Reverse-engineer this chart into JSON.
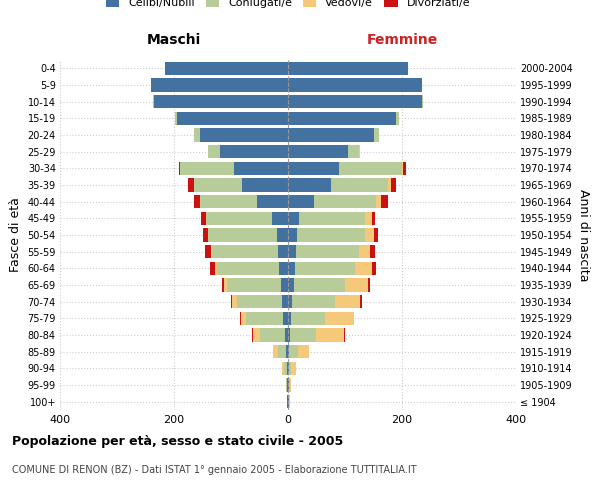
{
  "age_groups": [
    "100+",
    "95-99",
    "90-94",
    "85-89",
    "80-84",
    "75-79",
    "70-74",
    "65-69",
    "60-64",
    "55-59",
    "50-54",
    "45-49",
    "40-44",
    "35-39",
    "30-34",
    "25-29",
    "20-24",
    "15-19",
    "10-14",
    "5-9",
    "0-4"
  ],
  "birth_years": [
    "≤ 1904",
    "1905-1909",
    "1910-1914",
    "1915-1919",
    "1920-1924",
    "1925-1929",
    "1930-1934",
    "1935-1939",
    "1940-1944",
    "1945-1949",
    "1950-1954",
    "1955-1959",
    "1960-1964",
    "1965-1969",
    "1970-1974",
    "1975-1979",
    "1980-1984",
    "1985-1989",
    "1990-1994",
    "1995-1999",
    "2000-2004"
  ],
  "males": {
    "celibi": [
      1,
      1,
      2,
      3,
      5,
      8,
      10,
      12,
      15,
      18,
      20,
      28,
      55,
      80,
      95,
      120,
      155,
      195,
      235,
      240,
      215
    ],
    "coniugati": [
      1,
      2,
      5,
      15,
      45,
      65,
      80,
      95,
      110,
      115,
      120,
      115,
      100,
      85,
      95,
      20,
      10,
      4,
      2,
      0,
      0
    ],
    "vedovi": [
      0,
      1,
      3,
      8,
      12,
      10,
      8,
      5,
      3,
      2,
      1,
      1,
      0,
      0,
      0,
      0,
      0,
      0,
      0,
      0,
      0
    ],
    "divorziati": [
      0,
      0,
      0,
      0,
      1,
      1,
      2,
      3,
      8,
      10,
      8,
      8,
      10,
      10,
      2,
      1,
      0,
      0,
      0,
      0,
      0
    ]
  },
  "females": {
    "nubili": [
      1,
      1,
      1,
      2,
      4,
      5,
      7,
      10,
      12,
      14,
      15,
      20,
      45,
      75,
      90,
      105,
      150,
      190,
      235,
      235,
      210
    ],
    "coniugate": [
      1,
      2,
      5,
      15,
      45,
      60,
      75,
      90,
      105,
      110,
      120,
      115,
      110,
      100,
      110,
      20,
      10,
      4,
      2,
      0,
      0
    ],
    "vedove": [
      1,
      2,
      8,
      20,
      50,
      50,
      45,
      40,
      30,
      20,
      15,
      12,
      8,
      5,
      2,
      1,
      0,
      0,
      0,
      0,
      0
    ],
    "divorziate": [
      0,
      0,
      0,
      0,
      1,
      1,
      2,
      3,
      8,
      8,
      8,
      5,
      12,
      10,
      5,
      1,
      0,
      0,
      0,
      0,
      0
    ]
  },
  "color_celibi": "#4472a0",
  "color_coniugati": "#b8cc99",
  "color_vedovi": "#f5c87a",
  "color_divorziati": "#cc1111",
  "xlim": 400,
  "title_main": "Popolazione per età, sesso e stato civile - 2005",
  "title_sub": "COMUNE DI RENON (BZ) - Dati ISTAT 1° gennaio 2005 - Elaborazione TUTTITALIA.IT",
  "ylabel_left": "Fasce di età",
  "ylabel_right": "Anni di nascita",
  "xlabel_left": "Maschi",
  "xlabel_right": "Femmine"
}
